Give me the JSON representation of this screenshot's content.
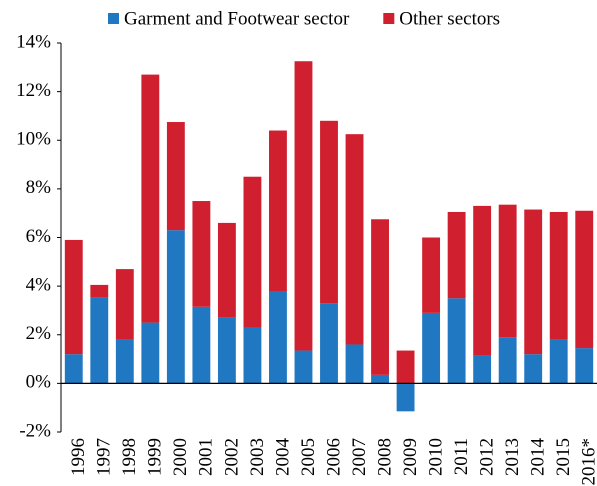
{
  "chart_data": {
    "type": "bar",
    "stacked": true,
    "categories": [
      "1996",
      "1997",
      "1998",
      "1999",
      "2000",
      "2001",
      "2002",
      "2003",
      "2004",
      "2005",
      "2006",
      "2007",
      "2008",
      "2009",
      "2010",
      "2011",
      "2012",
      "2013",
      "2014",
      "2015",
      "2016*"
    ],
    "series": [
      {
        "name": "Garment and Footwear sector",
        "color": "#1f78c1",
        "values": [
          1.2,
          3.55,
          1.8,
          2.5,
          6.3,
          3.15,
          2.7,
          2.3,
          3.8,
          1.35,
          3.3,
          1.6,
          0.35,
          -1.15,
          2.9,
          3.5,
          1.15,
          1.9,
          1.2,
          1.8,
          1.45
        ]
      },
      {
        "name": "Other sectors",
        "color": "#d01f2e",
        "values": [
          4.7,
          0.5,
          2.9,
          10.2,
          4.45,
          4.35,
          3.9,
          6.2,
          6.6,
          11.9,
          7.5,
          8.65,
          6.4,
          1.35,
          3.1,
          3.55,
          6.15,
          5.45,
          5.95,
          5.25,
          5.65
        ]
      }
    ],
    "ylim": [
      -2,
      14
    ],
    "yticks": [
      {
        "value": -2,
        "label": "-2%"
      },
      {
        "value": 0,
        "label": "0%"
      },
      {
        "value": 2,
        "label": "2%"
      },
      {
        "value": 4,
        "label": "4%"
      },
      {
        "value": 6,
        "label": "6%"
      },
      {
        "value": 8,
        "label": "8%"
      },
      {
        "value": 10,
        "label": "10%"
      },
      {
        "value": 12,
        "label": "12%"
      },
      {
        "value": 14,
        "label": "14%"
      }
    ],
    "legend": "top"
  }
}
